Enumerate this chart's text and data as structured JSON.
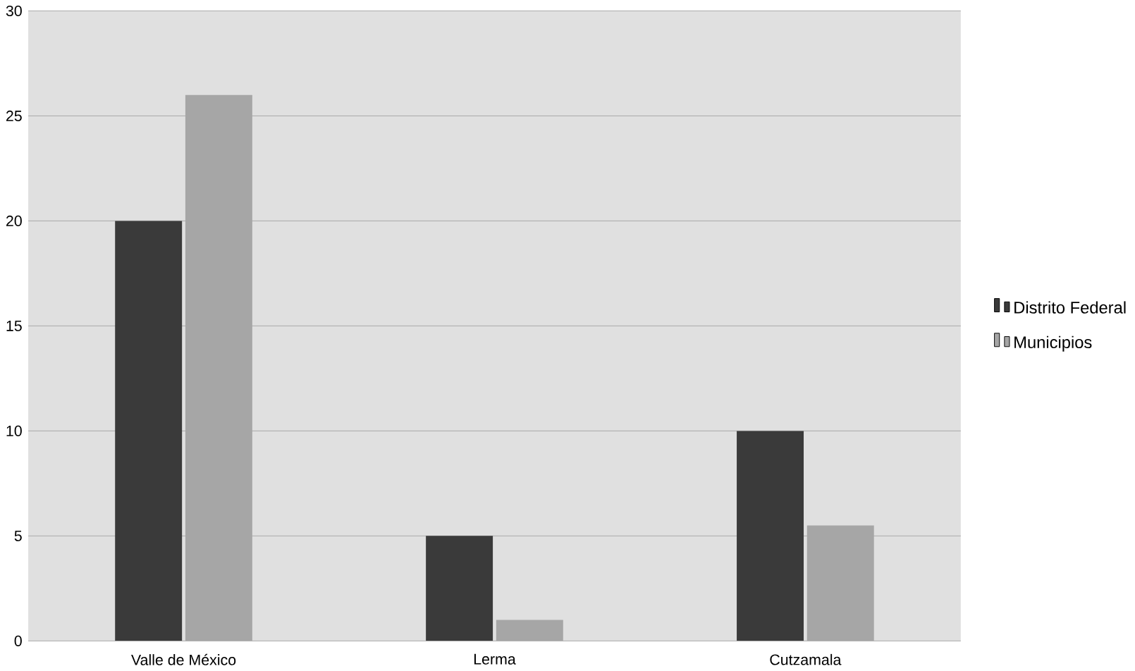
{
  "chart_data": {
    "type": "bar",
    "categories": [
      "Valle de México",
      "Lerma",
      "Cutzamala"
    ],
    "series": [
      {
        "name": "Distrito Federal",
        "color": "#3a3a3a",
        "values": [
          20,
          5,
          10
        ]
      },
      {
        "name": "Municipios",
        "color": "#a6a6a6",
        "values": [
          26,
          1,
          5.5
        ]
      }
    ],
    "ylim": [
      0,
      30
    ],
    "yticks": [
      0,
      5,
      10,
      15,
      20,
      25,
      30
    ],
    "grid": "y",
    "legend": "right"
  }
}
